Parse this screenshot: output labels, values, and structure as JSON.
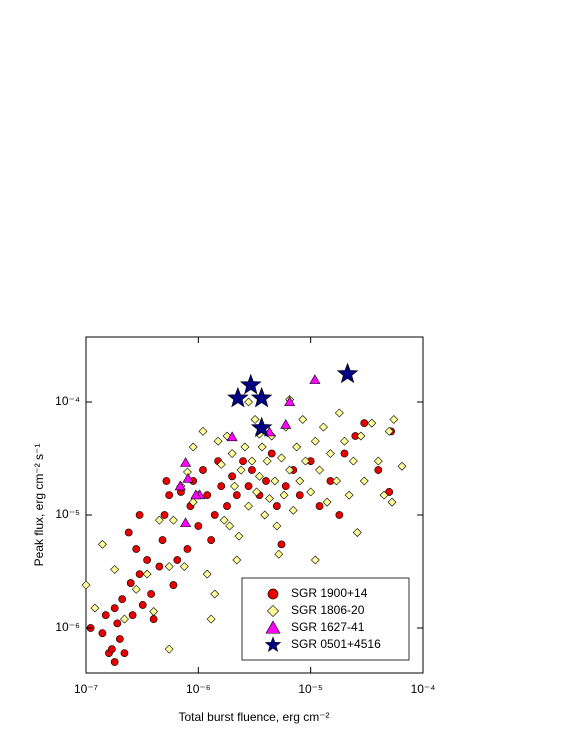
{
  "chart_data": {
    "type": "scatter",
    "xlabel": "Total burst fluence, erg cm⁻²",
    "ylabel": "Peak flux, erg cm⁻² s⁻¹",
    "xscale": "log",
    "yscale": "log",
    "xlim": [
      1e-07,
      0.0001
    ],
    "ylim": [
      4e-07,
      0.000376
    ],
    "xticks": [
      {
        "value": 1e-07,
        "label": "10⁻⁷"
      },
      {
        "value": 1e-06,
        "label": "10⁻⁶"
      },
      {
        "value": 1e-05,
        "label": "10⁻⁵"
      },
      {
        "value": 0.0001,
        "label": "10⁻⁴"
      }
    ],
    "yticks": [
      {
        "value": 1e-06,
        "label": "10⁻⁶"
      },
      {
        "value": 1e-05,
        "label": "10⁻⁵"
      },
      {
        "value": 0.0001,
        "label": "10⁻⁴"
      }
    ],
    "legend": "lower right",
    "series": [
      {
        "name": "SGR 1900+14",
        "color": "#e60000",
        "marker": "circle",
        "x": [
          1.4e-07,
          1.6e-07,
          1.7e-07,
          1.8e-07,
          2e-07,
          2.2e-07,
          1.5e-07,
          1.8e-07,
          2.1e-07,
          2.5e-07,
          2.6e-07,
          3e-07,
          3.2e-07,
          3.5e-07,
          3.8e-07,
          2.8e-07,
          3e-07,
          2.4e-07,
          4e-07,
          4.5e-07,
          4.8e-07,
          5e-07,
          5.2e-07,
          5.5e-07,
          6e-07,
          6.5e-07,
          7e-07,
          8e-07,
          8.5e-07,
          9e-07,
          1e-06,
          1.1e-06,
          1.2e-06,
          1.3e-06,
          1.4e-06,
          1.5e-06,
          1.6e-06,
          1.8e-06,
          2e-06,
          2.2e-06,
          2.5e-06,
          2.8e-06,
          3e-06,
          3.5e-06,
          4e-06,
          4.5e-06,
          5e-06,
          5.5e-06,
          6e-06,
          7e-06,
          8e-06,
          1e-05,
          1.2e-05,
          1.5e-05,
          1.8e-05,
          2e-05,
          2.5e-05,
          3e-05,
          4e-05,
          5e-05,
          5.2e-05,
          1.1e-07,
          1.9e-07
        ],
        "values": [
          9e-07,
          6e-07,
          6.5e-07,
          5e-07,
          8e-07,
          6e-07,
          1.3e-06,
          1.5e-06,
          1.8e-06,
          2.5e-06,
          1.3e-06,
          3e-06,
          1.6e-06,
          4e-06,
          2e-06,
          5e-06,
          1e-05,
          7e-06,
          1.2e-06,
          3.5e-06,
          6e-06,
          1e-05,
          2e-05,
          1.5e-05,
          2.4e-06,
          4e-06,
          1.6e-05,
          5e-06,
          1.2e-05,
          2e-05,
          8e-06,
          2.5e-05,
          1.5e-05,
          6e-06,
          1e-05,
          3e-05,
          1.8e-05,
          1.2e-05,
          2.2e-05,
          1.5e-05,
          3e-05,
          1.8e-05,
          2.5e-05,
          1.5e-05,
          2e-05,
          3.5e-05,
          1.2e-05,
          5.5e-06,
          1.8e-05,
          2.5e-05,
          1.5e-05,
          3e-05,
          1.2e-05,
          2e-05,
          1e-05,
          3.5e-05,
          5e-05,
          6.5e-05,
          2.5e-05,
          1.6e-05,
          5.5e-05,
          1e-06,
          1.1e-06
        ]
      },
      {
        "name": "SGR 1806-20",
        "color": "#ffff99",
        "marker": "diamond",
        "x": [
          1e-07,
          1.2e-07,
          1.4e-07,
          1.8e-07,
          2.2e-07,
          2.8e-07,
          3.5e-07,
          4e-07,
          5.5e-07,
          5.5e-07,
          6e-07,
          7e-07,
          7.5e-07,
          8e-07,
          9e-07,
          1e-06,
          1.1e-06,
          1.2e-06,
          1.3e-06,
          1.4e-06,
          1.5e-06,
          1.6e-06,
          1.8e-06,
          1.9e-06,
          2e-06,
          2.1e-06,
          2.3e-06,
          2.4e-06,
          2.6e-06,
          2.8e-06,
          3e-06,
          3.2e-06,
          3.3e-06,
          3.5e-06,
          3.7e-06,
          3.9e-06,
          4.1e-06,
          4.3e-06,
          4.5e-06,
          4.8e-06,
          5e-06,
          5.2e-06,
          5.5e-06,
          5.8e-06,
          6e-06,
          6.5e-06,
          7e-06,
          7.5e-06,
          8e-06,
          8.5e-06,
          9e-06,
          1e-05,
          1.1e-05,
          1.1e-05,
          1.2e-05,
          1.3e-05,
          1.4e-05,
          1.5e-05,
          1.7e-05,
          1.8e-05,
          2e-05,
          2.2e-05,
          2.4e-05,
          2.6e-05,
          2.8e-05,
          3e-05,
          3.5e-05,
          4e-05,
          4.5e-05,
          5e-05,
          5.5e-05,
          6.5e-05,
          5.3e-05,
          2.8e-06,
          6.5e-06,
          3.5e-06,
          1.7e-06,
          9e-07,
          4.5e-07,
          2.2e-06
        ],
        "values": [
          2.4e-06,
          1.5e-06,
          5.5e-06,
          3.3e-06,
          1.2e-06,
          2.2e-06,
          3e-06,
          1.4e-06,
          6.5e-07,
          3.5e-06,
          9e-06,
          1.8e-05,
          3.5e-06,
          2.4e-05,
          4e-05,
          1.5e-05,
          5.5e-05,
          3e-06,
          1.2e-06,
          2e-06,
          4.5e-05,
          2.8e-05,
          5e-05,
          8e-06,
          3.5e-05,
          1.8e-05,
          6.5e-06,
          2.5e-05,
          4e-05,
          1.2e-05,
          3e-05,
          7e-05,
          1.6e-05,
          2.2e-05,
          4e-05,
          1e-05,
          3e-05,
          1.4e-05,
          5e-05,
          2e-05,
          8e-06,
          4.5e-06,
          3.2e-05,
          1.5e-05,
          6e-05,
          2.5e-05,
          1.1e-05,
          4e-05,
          2e-05,
          7e-05,
          3e-05,
          1.6e-05,
          4e-06,
          4.5e-05,
          2.5e-05,
          6e-05,
          1.3e-05,
          3.5e-05,
          2e-05,
          8e-05,
          4.5e-05,
          1.5e-05,
          3e-05,
          7e-06,
          5e-05,
          2e-05,
          6.5e-05,
          3e-05,
          1.5e-05,
          5.5e-05,
          7e-05,
          2.7e-05,
          1.3e-05,
          0.0001,
          0.000105,
          5.2e-05,
          9e-06,
          1.3e-05,
          9e-06,
          4e-06
        ]
      },
      {
        "name": "SGR 1627-41",
        "color": "#ff00ff",
        "marker": "triangle",
        "x": [
          6.9e-07,
          7.7e-07,
          8.1e-07,
          7.7e-07,
          1.03e-06,
          2e-06,
          4.3e-06,
          6e-06,
          6.5e-06,
          1.09e-05,
          9.5e-07
        ],
        "values": [
          1.8e-05,
          2.9e-05,
          2.1e-05,
          8.5e-06,
          1.5e-05,
          4.9e-05,
          5.4e-05,
          6.3e-05,
          0.0001,
          0.000157,
          1.5e-05
        ]
      },
      {
        "name": "SGR 0501+4516",
        "color": "#000080",
        "marker": "star",
        "x": [
          2.25e-06,
          2.93e-06,
          3.66e-06,
          3.66e-06,
          2.13e-05
        ],
        "values": [
          0.000108,
          0.000141,
          0.000108,
          5.89e-05,
          0.000177
        ]
      }
    ]
  }
}
